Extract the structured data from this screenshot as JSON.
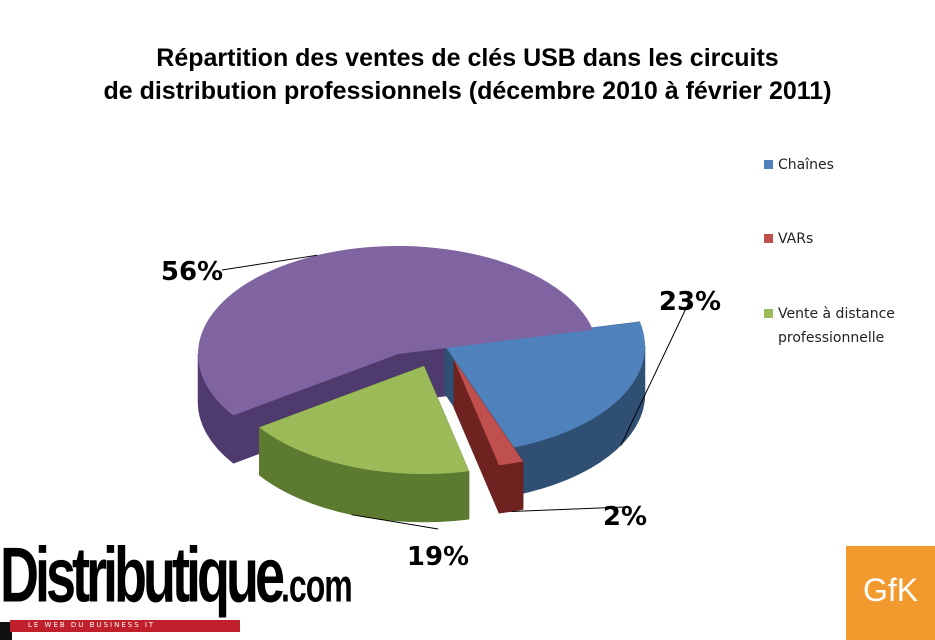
{
  "chart_data": {
    "type": "pie",
    "style": "3d-exploded",
    "title": [
      "Répartition des ventes de clés USB dans les circuits",
      "de distribution professionnels (décembre 2010 à février 2011)"
    ],
    "series": [
      {
        "name": "Chaînes",
        "value": 23,
        "label": "23%",
        "color": "#4f81bd",
        "side_color": "#2f4f73"
      },
      {
        "name": "VARs",
        "value": 2,
        "label": "2%",
        "color": "#c0504d",
        "side_color": "#6e2321"
      },
      {
        "name": "Vente à distance professionnelle",
        "value": 19,
        "label": "19%",
        "color": "#9bbb59",
        "side_color": "#5c7a30"
      },
      {
        "name": "",
        "value": 56,
        "label": "56%",
        "color": "#8064a2",
        "side_color": "#4e3a6c"
      }
    ],
    "legend": {
      "position": "right",
      "entries": [
        "Chaînes",
        "VARs",
        "Vente à distance professionnelle"
      ],
      "entry_lines": [
        [
          "Chaînes"
        ],
        [
          "VARs"
        ],
        [
          "Vente à distance",
          "professionnelle"
        ]
      ]
    }
  },
  "footer": {
    "publisher_name": "Distributique",
    "publisher_suffix": ".com",
    "publisher_tagline": "LE WEB DU BUSINESS IT",
    "source_logo": "GfK"
  }
}
